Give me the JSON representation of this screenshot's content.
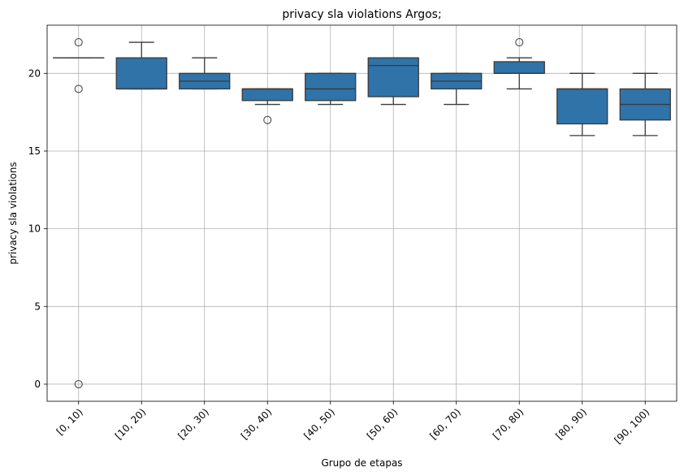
{
  "chart_data": {
    "type": "box",
    "title": "privacy sla violations Argos;",
    "xlabel": "Grupo de etapas",
    "ylabel": "privacy sla violations",
    "ylim": [
      -1.1,
      23.1
    ],
    "yticks": [
      0,
      5,
      10,
      15,
      20
    ],
    "grid": true,
    "box_color": "#2f73a8",
    "line_color": "#3a3a3a",
    "categories": [
      "[0, 10)",
      "[10, 20)",
      "[20, 30)",
      "[30, 40)",
      "[40, 50)",
      "[50, 60)",
      "[60, 70)",
      "[70, 80)",
      "[80, 90)",
      "[90, 100)"
    ],
    "boxes": [
      {
        "whislo": 21,
        "q1": 21,
        "med": 21,
        "q3": 21,
        "whishi": 21,
        "fliers": [
          22,
          19,
          0
        ]
      },
      {
        "whislo": 19,
        "q1": 19,
        "med": 19,
        "q3": 21,
        "whishi": 22,
        "fliers": []
      },
      {
        "whislo": 19,
        "q1": 19,
        "med": 19.5,
        "q3": 20,
        "whishi": 21,
        "fliers": []
      },
      {
        "whislo": 18,
        "q1": 18.25,
        "med": 19,
        "q3": 19,
        "whishi": 19,
        "fliers": [
          17
        ]
      },
      {
        "whislo": 18,
        "q1": 18.25,
        "med": 19,
        "q3": 20,
        "whishi": 20,
        "fliers": []
      },
      {
        "whislo": 18,
        "q1": 18.5,
        "med": 20.5,
        "q3": 21,
        "whishi": 21,
        "fliers": []
      },
      {
        "whislo": 18,
        "q1": 19,
        "med": 19.5,
        "q3": 20,
        "whishi": 20,
        "fliers": []
      },
      {
        "whislo": 19,
        "q1": 20,
        "med": 20,
        "q3": 20.75,
        "whishi": 21,
        "fliers": [
          22
        ]
      },
      {
        "whislo": 16,
        "q1": 16.75,
        "med": 19,
        "q3": 19,
        "whishi": 20,
        "fliers": []
      },
      {
        "whislo": 16,
        "q1": 17,
        "med": 18,
        "q3": 19,
        "whishi": 20,
        "fliers": []
      }
    ]
  }
}
